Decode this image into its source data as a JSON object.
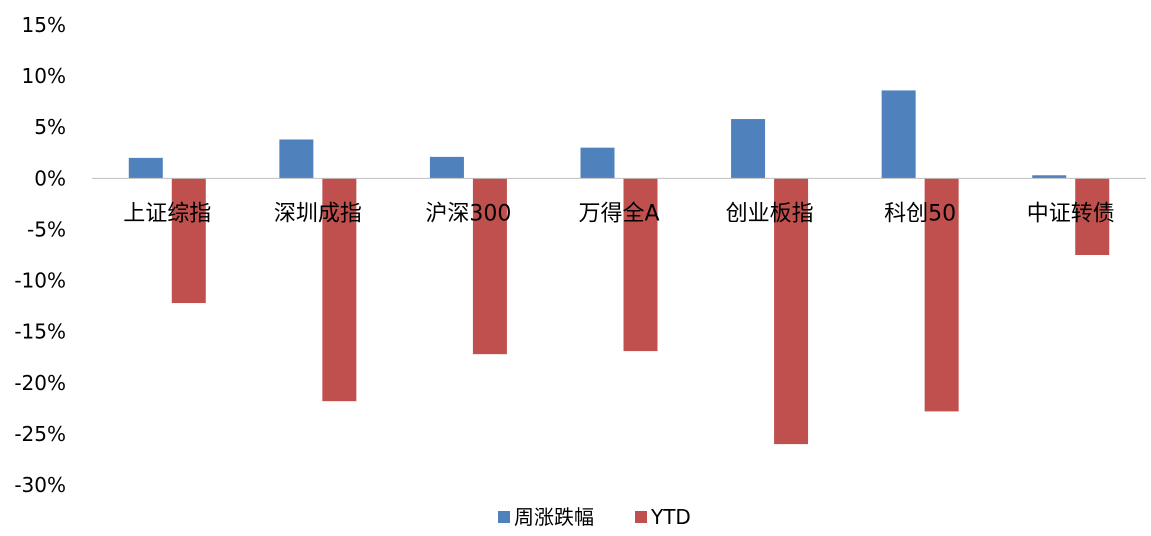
{
  "chart_data": {
    "type": "bar",
    "title": "",
    "xlabel": "",
    "ylabel": "",
    "categories": [
      "上证综指",
      "深圳成指",
      "沪深300",
      "万得全A",
      "创业板指",
      "科创50",
      "中证转债"
    ],
    "series": [
      {
        "name": "周涨跌幅",
        "color": "#4F81BD",
        "values": [
          2.0,
          3.8,
          2.1,
          3.0,
          5.8,
          8.6,
          0.3
        ]
      },
      {
        "name": "YTD",
        "color": "#C0504D",
        "values": [
          -12.2,
          -21.8,
          -17.2,
          -16.9,
          -26.0,
          -22.8,
          -7.5
        ]
      }
    ],
    "ylim": [
      -30,
      15
    ],
    "yticks": [
      15,
      10,
      5,
      0,
      -5,
      -10,
      -15,
      -20,
      -25,
      -30
    ],
    "ytick_labels": [
      "15%",
      "10%",
      "5%",
      "0%",
      "-5%",
      "-10%",
      "-15%",
      "-20%",
      "-25%",
      "-30%"
    ],
    "grid": false,
    "legend_position": "bottom"
  }
}
